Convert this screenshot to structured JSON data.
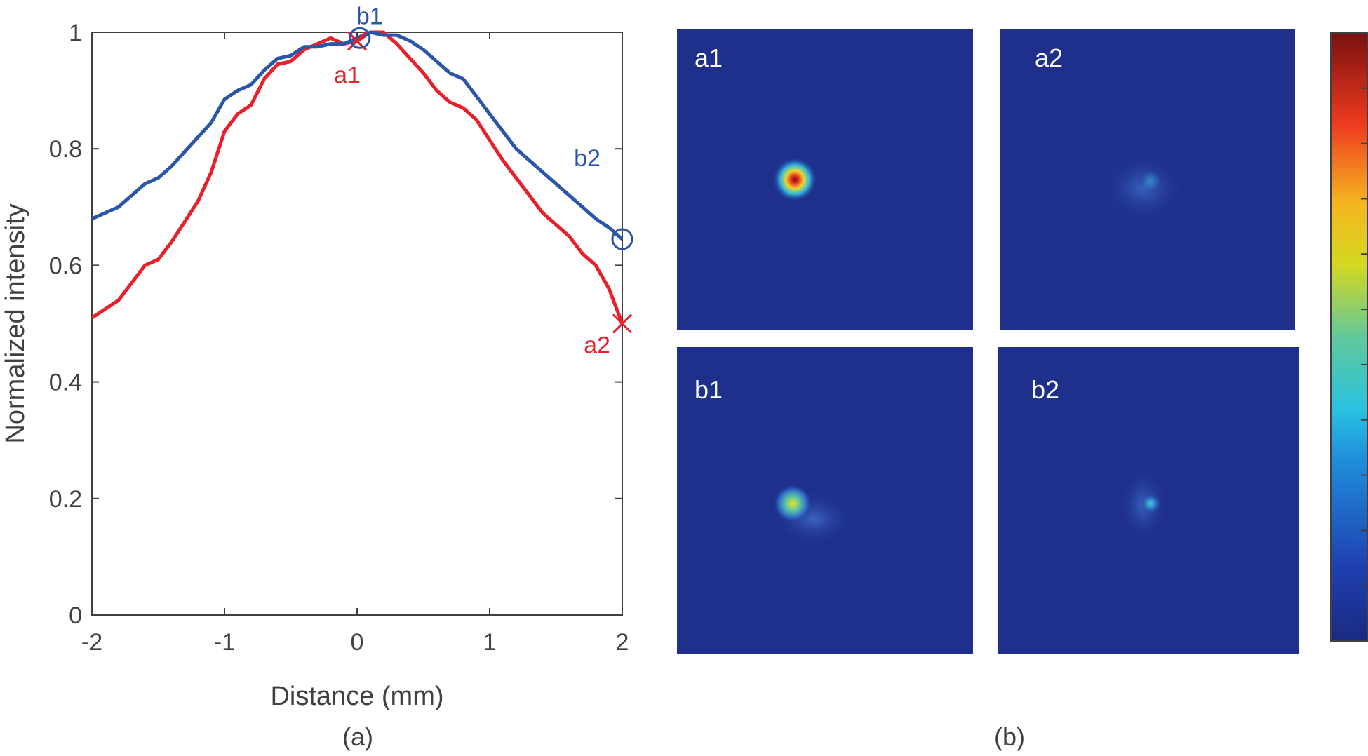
{
  "chart_data": {
    "type": "line",
    "xlabel": "Distance (mm)",
    "ylabel": "Normalized intensity",
    "x": [
      -2,
      -1.9,
      -1.8,
      -1.7,
      -1.6,
      -1.5,
      -1.4,
      -1.3,
      -1.2,
      -1.1,
      -1,
      -0.9,
      -0.8,
      -0.7,
      -0.6,
      -0.5,
      -0.4,
      -0.3,
      -0.2,
      -0.1,
      0,
      0.1,
      0.2,
      0.3,
      0.4,
      0.5,
      0.6,
      0.7,
      0.8,
      0.9,
      1,
      1.1,
      1.2,
      1.3,
      1.4,
      1.5,
      1.6,
      1.7,
      1.8,
      1.9,
      2
    ],
    "series": [
      {
        "color": "#e8202a",
        "values": [
          0.51,
          0.525,
          0.54,
          0.57,
          0.6,
          0.61,
          0.64,
          0.675,
          0.71,
          0.76,
          0.83,
          0.86,
          0.875,
          0.92,
          0.945,
          0.95,
          0.97,
          0.98,
          0.99,
          0.98,
          0.985,
          1.0,
          1.0,
          0.98,
          0.955,
          0.93,
          0.9,
          0.88,
          0.87,
          0.85,
          0.815,
          0.78,
          0.75,
          0.72,
          0.69,
          0.67,
          0.65,
          0.62,
          0.6,
          0.56,
          0.5
        ]
      },
      {
        "color": "#2a56a8",
        "values": [
          0.68,
          0.69,
          0.7,
          0.72,
          0.74,
          0.75,
          0.77,
          0.795,
          0.82,
          0.845,
          0.885,
          0.9,
          0.91,
          0.935,
          0.955,
          0.96,
          0.975,
          0.975,
          0.98,
          0.98,
          0.99,
          1.0,
          0.995,
          0.995,
          0.985,
          0.97,
          0.95,
          0.93,
          0.92,
          0.89,
          0.86,
          0.83,
          0.8,
          0.78,
          0.76,
          0.74,
          0.72,
          0.7,
          0.68,
          0.665,
          0.645
        ]
      }
    ],
    "markers": [
      {
        "text": "a1",
        "x": 0,
        "y": 0.985,
        "shape": "x",
        "color": "#e8202a",
        "label_pos": "below"
      },
      {
        "text": "a2",
        "x": 2,
        "y": 0.5,
        "shape": "x",
        "color": "#e8202a",
        "label_pos": "below-left"
      },
      {
        "text": "b1",
        "x": 0.02,
        "y": 0.99,
        "shape": "o",
        "color": "#2a56a8",
        "label_pos": "above"
      },
      {
        "text": "b2",
        "x": 2,
        "y": 0.645,
        "shape": "o",
        "color": "#2a56a8",
        "label_pos": "above-left"
      }
    ],
    "xlim": [
      -2,
      2
    ],
    "xticks": [
      -2,
      -1,
      0,
      1,
      2
    ],
    "ylim": [
      0,
      1
    ],
    "yticks": [
      0,
      0.2,
      0.4,
      0.6,
      0.8,
      1
    ]
  },
  "captions": [
    "(a)",
    "(b)"
  ],
  "image_panels": [
    "a1",
    "a2",
    "b1",
    "b2"
  ]
}
